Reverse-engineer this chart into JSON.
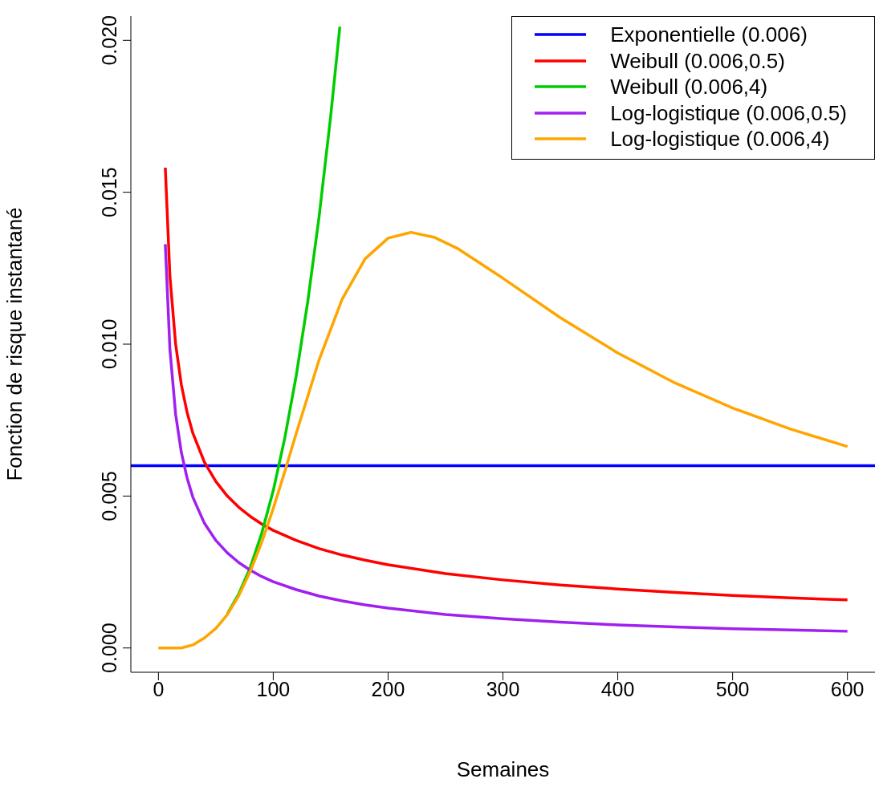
{
  "chart_data": {
    "type": "line",
    "xlabel": "Semaines",
    "ylabel": "Fonction de risque instantané",
    "xlim": [
      -24,
      624
    ],
    "ylim": [
      -0.0008,
      0.0208
    ],
    "xticks": [
      0,
      100,
      200,
      300,
      400,
      500,
      600
    ],
    "yticks": [
      {
        "value": 0,
        "label": "0.000"
      },
      {
        "value": 0.005,
        "label": "0.005"
      },
      {
        "value": 0.01,
        "label": "0.010"
      },
      {
        "value": 0.015,
        "label": "0.015"
      },
      {
        "value": 0.02,
        "label": "0.020"
      }
    ],
    "grid": false,
    "legend": "top right",
    "marker": "none",
    "line_style": "solid",
    "series": [
      {
        "name": "Exponentielle (0.006)",
        "color": "#0000ff",
        "x": [
          -24,
          624
        ],
        "values": [
          0.006,
          0.006
        ]
      },
      {
        "name": "Weibull (0.006,0.5)",
        "color": "#ff0000",
        "x": [
          6,
          10,
          15,
          20,
          25,
          30,
          40,
          50,
          60,
          70,
          80,
          90,
          100,
          120,
          140,
          160,
          180,
          200,
          250,
          300,
          350,
          400,
          450,
          500,
          550,
          600
        ],
        "values": [
          0.01581,
          0.01225,
          0.01,
          0.00866,
          0.00775,
          0.00707,
          0.00612,
          0.00548,
          0.005,
          0.00463,
          0.00433,
          0.00408,
          0.00387,
          0.00354,
          0.00327,
          0.00306,
          0.00289,
          0.00274,
          0.00245,
          0.00224,
          0.00207,
          0.00194,
          0.00183,
          0.00173,
          0.00165,
          0.00158
        ]
      },
      {
        "name": "Weibull (0.006,4)",
        "color": "#00cd00",
        "x": [
          60,
          70,
          80,
          90,
          100,
          110,
          120,
          130,
          140,
          150,
          158
        ],
        "values": [
          0.00112,
          0.00178,
          0.00265,
          0.00378,
          0.00518,
          0.0069,
          0.00896,
          0.01139,
          0.01422,
          0.0175,
          0.02045
        ]
      },
      {
        "name": "Log-logistique (0.006,0.5)",
        "color": "#a020f0",
        "x": [
          6,
          10,
          15,
          20,
          25,
          30,
          40,
          50,
          60,
          70,
          80,
          90,
          100,
          120,
          140,
          160,
          180,
          200,
          250,
          300,
          350,
          400,
          450,
          500,
          550,
          600
        ],
        "values": [
          0.01329,
          0.00984,
          0.00769,
          0.00643,
          0.00559,
          0.00496,
          0.00411,
          0.00354,
          0.00313,
          0.00281,
          0.00256,
          0.00235,
          0.00218,
          0.00192,
          0.00171,
          0.00155,
          0.00142,
          0.00131,
          0.0011,
          0.00096,
          0.00085,
          0.00076,
          0.00069,
          0.00063,
          0.00059,
          0.00055
        ]
      },
      {
        "name": "Log-logistique (0.006,4)",
        "color": "#ffa500",
        "x": [
          0,
          10,
          20,
          30,
          40,
          50,
          60,
          70,
          80,
          90,
          100,
          110,
          120,
          140,
          160,
          180,
          200,
          220,
          240,
          260,
          300,
          350,
          400,
          450,
          500,
          550,
          600
        ],
        "values": [
          0,
          0,
          0,
          0.0001,
          0.00033,
          0.00064,
          0.0011,
          0.00172,
          0.00252,
          0.00348,
          0.00459,
          0.0058,
          0.00706,
          0.00949,
          0.01148,
          0.01281,
          0.01349,
          0.01368,
          0.01352,
          0.01316,
          0.01217,
          0.01087,
          0.00971,
          0.00872,
          0.0079,
          0.00721,
          0.00663
        ]
      }
    ]
  }
}
